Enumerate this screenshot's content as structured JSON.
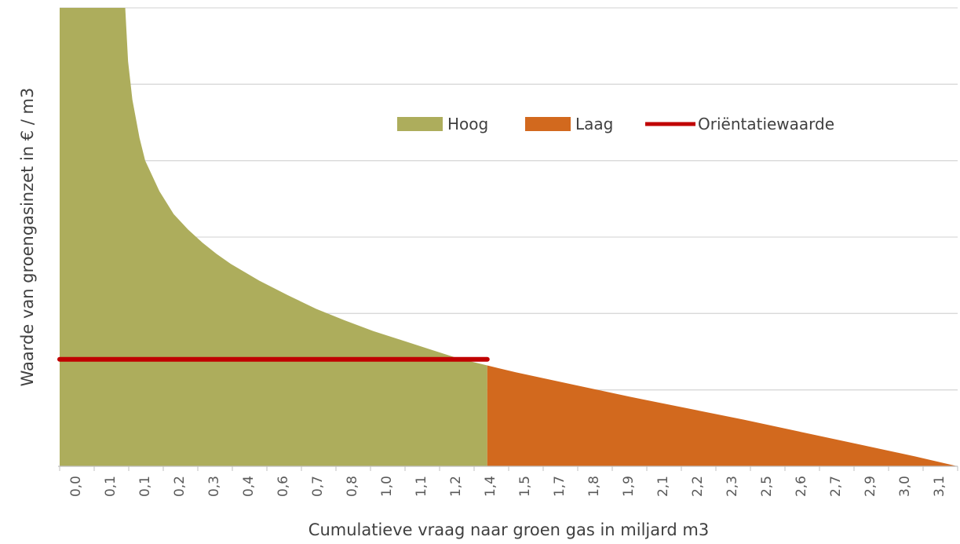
{
  "chart_data": {
    "type": "area",
    "title": "",
    "xlabel": "Cumulatieve vraag naar groen gas in miljard m3",
    "ylabel": "Waarde van  groengasinzet in € / m3",
    "x_tick_labels": [
      "0,0",
      "0,1",
      "0,1",
      "0,2",
      "0,3",
      "0,4",
      "0,6",
      "0,7",
      "0,8",
      "1,0",
      "1,1",
      "1,2",
      "1,4",
      "1,5",
      "1,7",
      "1,8",
      "1,9",
      "2,1",
      "2,2",
      "2,3",
      "2,5",
      "2,6",
      "2,7",
      "2,9",
      "3,0",
      "3,1"
    ],
    "xlim": [
      0,
      3.15
    ],
    "ylim": [
      0,
      6
    ],
    "grid": true,
    "legend_position": "top-right",
    "orientatiewaarde": {
      "value": 1.4,
      "x_end": 1.5
    },
    "series": [
      {
        "name": "Hoog",
        "color": "#adad5c",
        "x": [
          0.0,
          0.23,
          0.24,
          0.255,
          0.28,
          0.3,
          0.35,
          0.4,
          0.45,
          0.5,
          0.55,
          0.6,
          0.7,
          0.8,
          0.9,
          1.0,
          1.1,
          1.2,
          1.3,
          1.4,
          1.5
        ],
        "values": [
          6.0,
          6.0,
          5.3,
          4.8,
          4.3,
          4.0,
          3.6,
          3.3,
          3.1,
          2.93,
          2.78,
          2.65,
          2.43,
          2.24,
          2.06,
          1.91,
          1.77,
          1.65,
          1.53,
          1.41,
          1.32
        ]
      },
      {
        "name": "Laag",
        "color": "#d2691e",
        "x": [
          1.5,
          1.6,
          1.8,
          2.0,
          2.2,
          2.4,
          2.6,
          2.8,
          3.0,
          3.15
        ],
        "values": [
          1.32,
          1.23,
          1.07,
          0.91,
          0.76,
          0.61,
          0.45,
          0.29,
          0.13,
          0.0
        ]
      },
      {
        "name": "Oriëntatiewaarde",
        "color": "#c00000",
        "x": [
          0.0,
          1.5
        ],
        "values": [
          1.4,
          1.4
        ]
      }
    ]
  }
}
